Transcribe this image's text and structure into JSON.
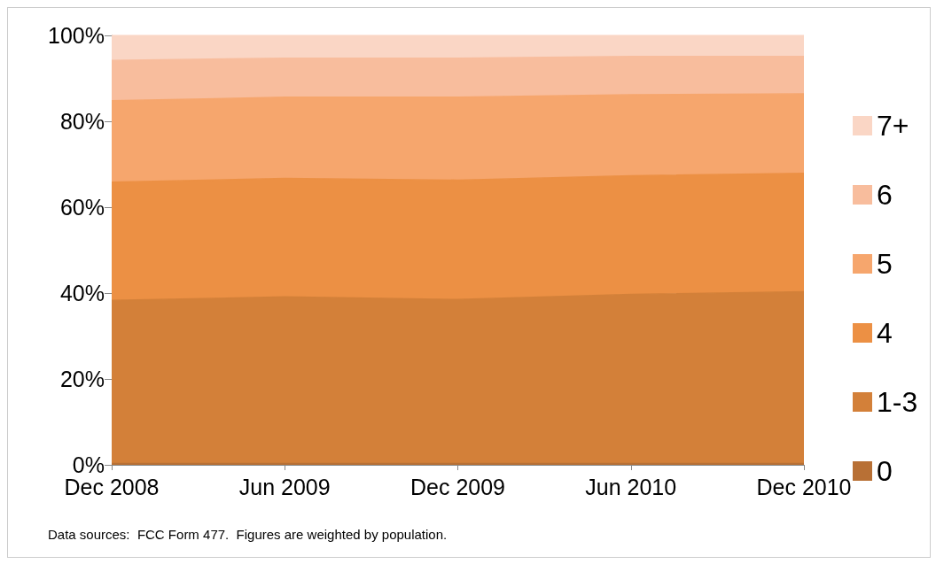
{
  "chart_data": {
    "type": "area",
    "stacked": true,
    "categories": [
      "Dec 2008",
      "Jun 2009",
      "Dec 2009",
      "Jun 2010",
      "Dec 2010"
    ],
    "series": [
      {
        "name": "0",
        "color": "#b87035",
        "values": [
          0.3,
          0.3,
          0.3,
          0.3,
          0.3
        ]
      },
      {
        "name": "1-3",
        "color": "#d38039",
        "values": [
          38.0,
          38.8,
          38.2,
          39.4,
          40.0
        ]
      },
      {
        "name": "4",
        "color": "#ec9044",
        "values": [
          27.5,
          27.6,
          27.8,
          27.6,
          27.6
        ]
      },
      {
        "name": "5",
        "color": "#f6a66d",
        "values": [
          19.0,
          18.9,
          19.3,
          18.9,
          18.5
        ]
      },
      {
        "name": "6",
        "color": "#f8bd9d",
        "values": [
          9.4,
          9.1,
          9.1,
          8.9,
          8.7
        ]
      },
      {
        "name": "7+",
        "color": "#fad6c5",
        "values": [
          5.8,
          5.3,
          5.3,
          4.9,
          4.9
        ]
      }
    ],
    "ylim": [
      0,
      100
    ],
    "yticks": [
      {
        "value": 0,
        "label": "0%"
      },
      {
        "value": 20,
        "label": "20%"
      },
      {
        "value": 40,
        "label": "40%"
      },
      {
        "value": 60,
        "label": "60%"
      },
      {
        "value": 80,
        "label": "80%"
      },
      {
        "value": 100,
        "label": "100%"
      }
    ],
    "grid": false,
    "legend": "right",
    "marker": "none",
    "annotations": [
      "Data sources:  FCC Form 477.  Figures are weighted by population."
    ]
  }
}
